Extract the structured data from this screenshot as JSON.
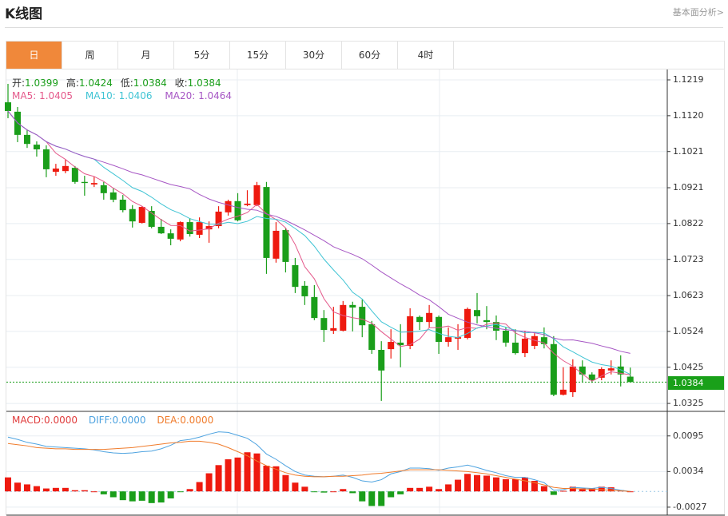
{
  "header": {
    "title": "K线图",
    "link": "基本面分析>"
  },
  "tabs": [
    {
      "label": "日",
      "active": true
    },
    {
      "label": "周"
    },
    {
      "label": "月"
    },
    {
      "label": "5分"
    },
    {
      "label": "15分"
    },
    {
      "label": "30分"
    },
    {
      "label": "60分"
    },
    {
      "label": "4时"
    }
  ],
  "ohlc_info": {
    "open_label": "开:",
    "open": "1.0399",
    "high_label": "高:",
    "high": "1.0424",
    "low_label": "低:",
    "low": "1.0384",
    "close_label": "收:",
    "close": "1.0384"
  },
  "ma_info": {
    "ma5": "MA5: 1.0405",
    "ma10": "MA10: 1.0406",
    "ma20": "MA20: 1.0464"
  },
  "macd_info": {
    "macd": "MACD:0.0000",
    "diff": "DIFF:0.0000",
    "dea": "DEA:0.0000"
  },
  "colors": {
    "up": "#ee1a0f",
    "down": "#1a9e1a",
    "ma5": "#e4588a",
    "ma10": "#40c4d4",
    "ma20": "#a656c4",
    "diff": "#4ea3e0",
    "dea": "#f07c2c",
    "accent": "#f0883a"
  },
  "chart_data": [
    {
      "type": "candlestick",
      "ylim": [
        1.0303,
        1.1285
      ],
      "y_ticks": [
        "1.1219",
        "1.1120",
        "1.1021",
        "1.0921",
        "1.0822",
        "1.0723",
        "1.0623",
        "1.0524",
        "1.0425",
        "1.0325"
      ],
      "current_price": "1.0384",
      "grid": true,
      "ma_periods": [
        5,
        10,
        20
      ],
      "ohlc": [
        [
          1.1157,
          1.1208,
          1.1113,
          1.1133
        ],
        [
          1.1131,
          1.1144,
          1.1047,
          1.1067
        ],
        [
          1.1067,
          1.1082,
          1.1031,
          1.1042
        ],
        [
          1.104,
          1.1049,
          1.1007,
          1.1027
        ],
        [
          1.1027,
          1.1038,
          1.095,
          1.0972
        ],
        [
          1.0965,
          1.0987,
          1.0954,
          1.0974
        ],
        [
          1.0967,
          1.0998,
          1.0961,
          1.0981
        ],
        [
          1.0976,
          1.0981,
          1.0932,
          1.0937
        ],
        [
          1.0937,
          1.0954,
          1.0899,
          1.0934
        ],
        [
          1.093,
          1.0952,
          1.0923,
          1.0934
        ],
        [
          1.0928,
          1.0937,
          1.0888,
          1.0906
        ],
        [
          1.0908,
          1.0919,
          1.0881,
          1.0888
        ],
        [
          1.0888,
          1.0901,
          1.0853,
          1.0859
        ],
        [
          1.0862,
          1.0873,
          1.0811,
          1.0828
        ],
        [
          1.0824,
          1.087,
          1.0822,
          1.0868
        ],
        [
          1.0857,
          1.087,
          1.0809,
          1.0813
        ],
        [
          1.0813,
          1.0835,
          1.0793,
          1.0795
        ],
        [
          1.0795,
          1.0806,
          1.0762,
          1.078
        ],
        [
          1.0778,
          1.0828,
          1.0773,
          1.0826
        ],
        [
          1.0826,
          1.0837,
          1.0786,
          1.0793
        ],
        [
          1.0791,
          1.0839,
          1.0782,
          1.0826
        ],
        [
          1.0806,
          1.0828,
          1.0769,
          1.0815
        ],
        [
          1.0815,
          1.087,
          1.0809,
          1.0855
        ],
        [
          1.0853,
          1.0888,
          1.0844,
          1.0884
        ],
        [
          1.0884,
          1.0906,
          1.0828,
          1.0831
        ],
        [
          1.0873,
          1.0914,
          1.087,
          1.0877
        ],
        [
          1.0873,
          1.0937,
          1.087,
          1.0928
        ],
        [
          1.0923,
          1.0937,
          1.0683,
          1.0727
        ],
        [
          1.0725,
          1.0826,
          1.0714,
          1.0802
        ],
        [
          1.0804,
          1.0809,
          1.0687,
          1.0716
        ],
        [
          1.0707,
          1.0727,
          1.063,
          1.0647
        ],
        [
          1.065,
          1.0663,
          1.0597,
          1.0621
        ],
        [
          1.0619,
          1.0652,
          1.0555,
          1.0561
        ],
        [
          1.0561,
          1.0583,
          1.0495,
          1.0528
        ],
        [
          1.0526,
          1.0592,
          1.0517,
          1.0533
        ],
        [
          1.0526,
          1.0608,
          1.0524,
          1.0597
        ],
        [
          1.0597,
          1.0606,
          1.0524,
          1.059
        ],
        [
          1.0592,
          1.0612,
          1.0508,
          1.0541
        ],
        [
          1.0544,
          1.0553,
          1.0462,
          1.0473
        ],
        [
          1.0473,
          1.0497,
          1.0332,
          1.0416
        ],
        [
          1.0475,
          1.053,
          1.0449,
          1.0495
        ],
        [
          1.0493,
          1.0544,
          1.0425,
          1.0486
        ],
        [
          1.0484,
          1.0588,
          1.0475,
          1.0566
        ],
        [
          1.0564,
          1.0568,
          1.0528,
          1.055
        ],
        [
          1.055,
          1.0597,
          1.0535,
          1.0575
        ],
        [
          1.0564,
          1.0568,
          1.0462,
          1.0495
        ],
        [
          1.0495,
          1.0535,
          1.0482,
          1.0508
        ],
        [
          1.0504,
          1.0544,
          1.0473,
          1.0508
        ],
        [
          1.0506,
          1.059,
          1.0502,
          1.0586
        ],
        [
          1.0583,
          1.063,
          1.0546,
          1.0566
        ],
        [
          1.0555,
          1.0594,
          1.053,
          1.055
        ],
        [
          1.055,
          1.0568,
          1.05,
          1.0526
        ],
        [
          1.0526,
          1.0535,
          1.0482,
          1.0493
        ],
        [
          1.0493,
          1.053,
          1.046,
          1.0464
        ],
        [
          1.0464,
          1.0526,
          1.0453,
          1.0504
        ],
        [
          1.0484,
          1.0519,
          1.0475,
          1.0511
        ],
        [
          1.0508,
          1.0535,
          1.0477,
          1.0489
        ],
        [
          1.0489,
          1.0511,
          1.0345,
          1.0349
        ],
        [
          1.0349,
          1.0425,
          1.0347,
          1.0363
        ],
        [
          1.0356,
          1.0447,
          1.0343,
          1.0427
        ],
        [
          1.0427,
          1.0444,
          1.0384,
          1.0405
        ],
        [
          1.0405,
          1.0411,
          1.0382,
          1.0389
        ],
        [
          1.0396,
          1.0425,
          1.0389,
          1.042
        ],
        [
          1.0416,
          1.0444,
          1.0405,
          1.0422
        ],
        [
          1.0427,
          1.0458,
          1.0372,
          1.0405
        ],
        [
          1.0399,
          1.0424,
          1.0384,
          1.0384
        ]
      ]
    },
    {
      "type": "macd",
      "y_ticks": [
        "0.0095",
        "0.0034",
        "-0.0027"
      ],
      "histogram": [
        0.0024,
        0.0015,
        0.0012,
        0.0009,
        0.0005,
        0.0006,
        0.0006,
        0.0002,
        0.0002,
        0.0,
        -0.0005,
        -0.001,
        -0.0015,
        -0.0017,
        -0.0016,
        -0.002,
        -0.0019,
        -0.0012,
        -0.0001,
        0.0004,
        0.0016,
        0.0031,
        0.0045,
        0.0055,
        0.0058,
        0.0067,
        0.0065,
        0.0044,
        0.0043,
        0.0028,
        0.0015,
        0.0008,
        -0.0001,
        -0.0002,
        0.0,
        0.0004,
        -0.0003,
        -0.0017,
        -0.0025,
        -0.0025,
        -0.001,
        -0.0005,
        0.0006,
        0.0006,
        0.0008,
        0.0004,
        0.0012,
        0.002,
        0.003,
        0.0028,
        0.0027,
        0.0024,
        0.0021,
        0.0021,
        0.0024,
        0.0018,
        0.0009,
        -0.0006,
        0.0001,
        0.0008,
        0.0005,
        0.0005,
        0.0008,
        0.0007,
        0.0002,
        0.0
      ],
      "diff": [
        0.0093,
        0.0089,
        0.0084,
        0.0081,
        0.0077,
        0.0076,
        0.0075,
        0.0074,
        0.0073,
        0.0071,
        0.0068,
        0.0066,
        0.0065,
        0.0066,
        0.0068,
        0.0069,
        0.0073,
        0.0079,
        0.0087,
        0.0089,
        0.0093,
        0.0098,
        0.0102,
        0.0101,
        0.0096,
        0.0091,
        0.008,
        0.0064,
        0.0055,
        0.0044,
        0.0034,
        0.0028,
        0.0026,
        0.0025,
        0.0026,
        0.0028,
        0.0024,
        0.0018,
        0.0016,
        0.002,
        0.003,
        0.0034,
        0.004,
        0.004,
        0.0039,
        0.0036,
        0.004,
        0.0042,
        0.0045,
        0.0041,
        0.0036,
        0.0032,
        0.0027,
        0.0024,
        0.0024,
        0.002,
        0.0015,
        0.0002,
        0.0003,
        0.0007,
        0.0006,
        0.0005,
        0.0007,
        0.0005,
        0.0002,
        0.0
      ],
      "dea": [
        0.0082,
        0.008,
        0.0078,
        0.0075,
        0.0074,
        0.0073,
        0.0073,
        0.0072,
        0.0072,
        0.0072,
        0.0072,
        0.0073,
        0.0074,
        0.0075,
        0.0077,
        0.0079,
        0.0081,
        0.0083,
        0.0084,
        0.0086,
        0.0086,
        0.0084,
        0.0081,
        0.0075,
        0.0068,
        0.0061,
        0.0052,
        0.0044,
        0.0038,
        0.0032,
        0.0028,
        0.0026,
        0.0025,
        0.0025,
        0.0026,
        0.0026,
        0.0027,
        0.0028,
        0.003,
        0.0031,
        0.0033,
        0.0035,
        0.0037,
        0.0037,
        0.0037,
        0.0037,
        0.0036,
        0.0035,
        0.0034,
        0.0032,
        0.003,
        0.0027,
        0.0024,
        0.0021,
        0.0018,
        0.0015,
        0.0011,
        0.0007,
        0.0005,
        0.0005,
        0.0004,
        0.0004,
        0.0003,
        0.0002,
        0.0001,
        0.0
      ]
    }
  ]
}
